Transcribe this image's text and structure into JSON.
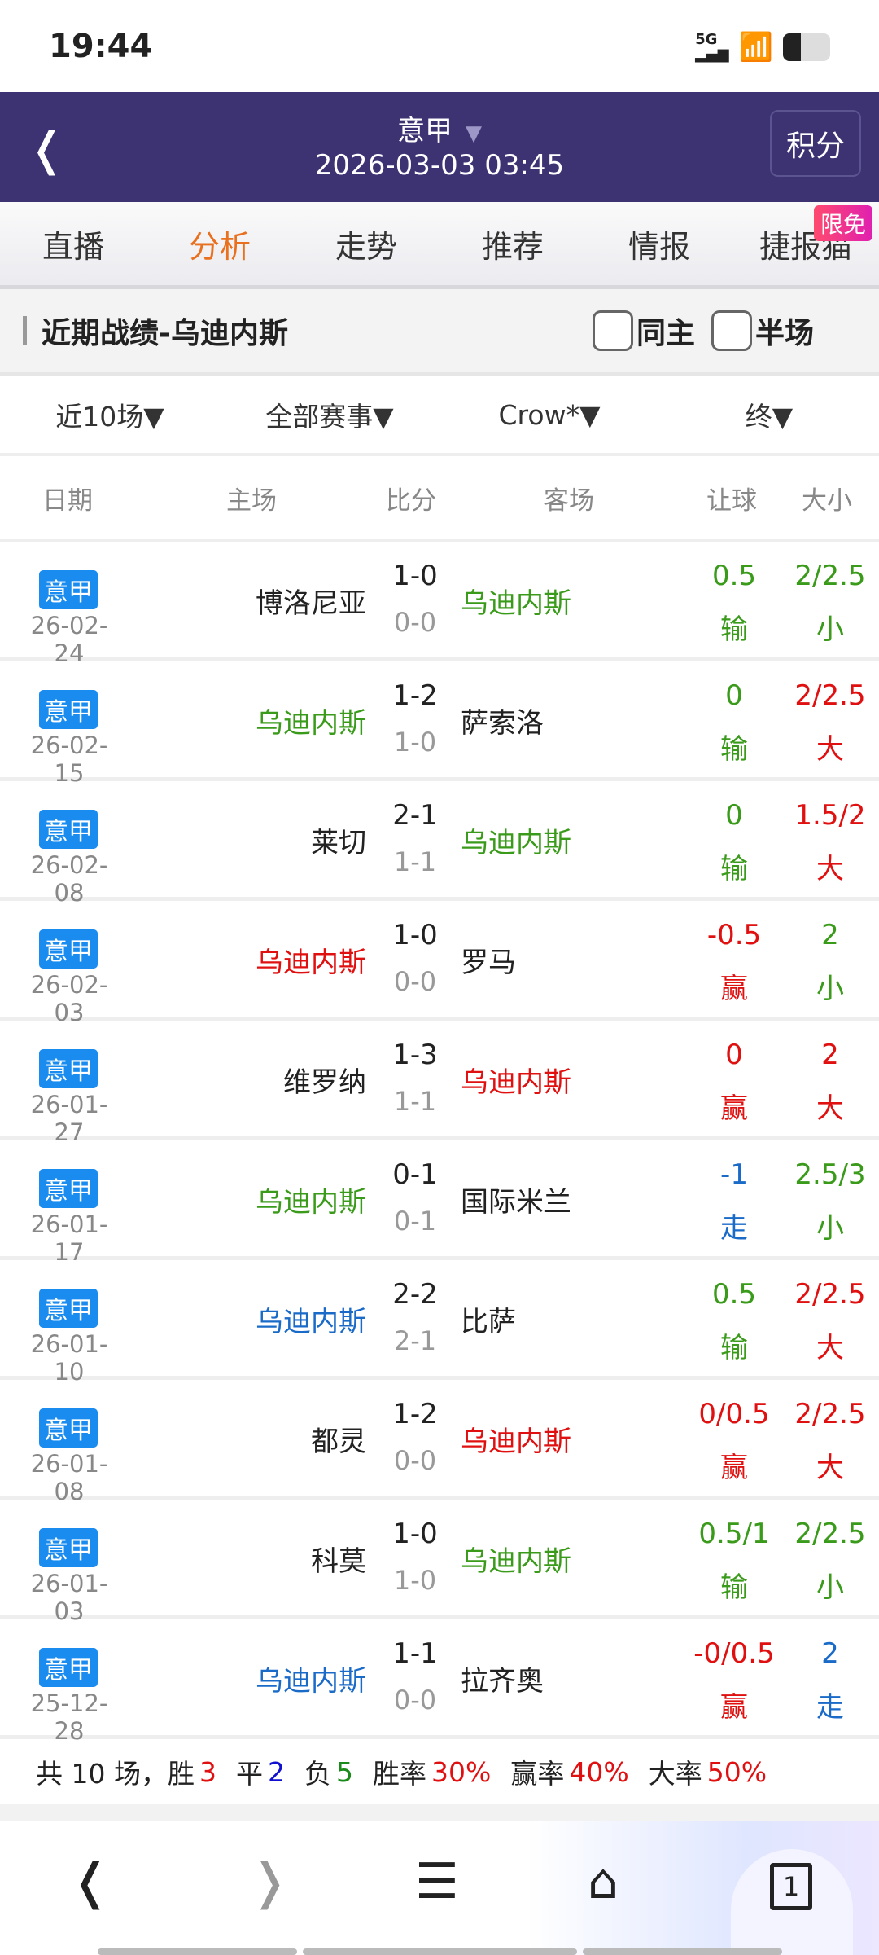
{
  "status": {
    "time": "19:44",
    "network": "5G"
  },
  "header": {
    "league": "意甲",
    "datetime": "2026-03-03 03:45",
    "standings_button": "积分"
  },
  "tabs": [
    "直播",
    "分析",
    "走势",
    "推荐",
    "情报",
    "捷报猫"
  ],
  "active_tab": "分析",
  "tab_badge": "限免",
  "section": {
    "title": "近期战绩-乌迪内斯",
    "checkbox_same_home": "同主",
    "checkbox_half": "半场"
  },
  "filters": [
    "近10场",
    "全部赛事",
    "Crow*",
    "终"
  ],
  "columns": [
    "日期",
    "主场",
    "比分",
    "客场",
    "让球",
    "大小"
  ],
  "colors": {
    "green": "#3a9a1a",
    "red": "#e01010",
    "blue": "#1a6ac8",
    "dark": "#222222",
    "badge": "#1a8cf0",
    "header": "#3d3373",
    "accent": "#e8701e"
  },
  "rows": [
    {
      "league": "意甲",
      "date": "26-02-24",
      "home": "博洛尼亚",
      "home_color": "dark",
      "away": "乌迪内斯",
      "away_color": "green",
      "ft": "1-0",
      "ht": "0-0",
      "hcp": "0.5",
      "hcp_result": "输",
      "hcp_color": "green",
      "ou": "2/2.5",
      "ou_result": "小",
      "ou_color": "green"
    },
    {
      "league": "意甲",
      "date": "26-02-15",
      "home": "乌迪内斯",
      "home_color": "green",
      "away": "萨索洛",
      "away_color": "dark",
      "ft": "1-2",
      "ht": "1-0",
      "hcp": "0",
      "hcp_result": "输",
      "hcp_color": "green",
      "ou": "2/2.5",
      "ou_result": "大",
      "ou_color": "red"
    },
    {
      "league": "意甲",
      "date": "26-02-08",
      "home": "莱切",
      "home_color": "dark",
      "away": "乌迪内斯",
      "away_color": "green",
      "ft": "2-1",
      "ht": "1-1",
      "hcp": "0",
      "hcp_result": "输",
      "hcp_color": "green",
      "ou": "1.5/2",
      "ou_result": "大",
      "ou_color": "red"
    },
    {
      "league": "意甲",
      "date": "26-02-03",
      "home": "乌迪内斯",
      "home_color": "red",
      "away": "罗马",
      "away_color": "dark",
      "ft": "1-0",
      "ht": "0-0",
      "hcp": "-0.5",
      "hcp_result": "赢",
      "hcp_color": "red",
      "ou": "2",
      "ou_result": "小",
      "ou_color": "green"
    },
    {
      "league": "意甲",
      "date": "26-01-27",
      "home": "维罗纳",
      "home_color": "dark",
      "away": "乌迪内斯",
      "away_color": "red",
      "ft": "1-3",
      "ht": "1-1",
      "hcp": "0",
      "hcp_result": "赢",
      "hcp_color": "red",
      "ou": "2",
      "ou_result": "大",
      "ou_color": "red"
    },
    {
      "league": "意甲",
      "date": "26-01-17",
      "home": "乌迪内斯",
      "home_color": "green",
      "away": "国际米兰",
      "away_color": "dark",
      "ft": "0-1",
      "ht": "0-1",
      "hcp": "-1",
      "hcp_result": "走",
      "hcp_color": "blue",
      "ou": "2.5/3",
      "ou_result": "小",
      "ou_color": "green"
    },
    {
      "league": "意甲",
      "date": "26-01-10",
      "home": "乌迪内斯",
      "home_color": "blue",
      "away": "比萨",
      "away_color": "dark",
      "ft": "2-2",
      "ht": "2-1",
      "hcp": "0.5",
      "hcp_result": "输",
      "hcp_color": "green",
      "ou": "2/2.5",
      "ou_result": "大",
      "ou_color": "red"
    },
    {
      "league": "意甲",
      "date": "26-01-08",
      "home": "都灵",
      "home_color": "dark",
      "away": "乌迪内斯",
      "away_color": "red",
      "ft": "1-2",
      "ht": "0-0",
      "hcp": "0/0.5",
      "hcp_result": "赢",
      "hcp_color": "red",
      "ou": "2/2.5",
      "ou_result": "大",
      "ou_color": "red"
    },
    {
      "league": "意甲",
      "date": "26-01-03",
      "home": "科莫",
      "home_color": "dark",
      "away": "乌迪内斯",
      "away_color": "green",
      "ft": "1-0",
      "ht": "1-0",
      "hcp": "0.5/1",
      "hcp_result": "输",
      "hcp_color": "green",
      "ou": "2/2.5",
      "ou_result": "小",
      "ou_color": "green"
    },
    {
      "league": "意甲",
      "date": "25-12-28",
      "home": "乌迪内斯",
      "home_color": "blue",
      "away": "拉齐奥",
      "away_color": "dark",
      "ft": "1-1",
      "ht": "0-0",
      "hcp": "-0/0.5",
      "hcp_result": "赢",
      "hcp_color": "red",
      "ou": "2",
      "ou_result": "走",
      "ou_color": "blue"
    }
  ],
  "summary": {
    "total_label": "共 10 场，",
    "win_label": "胜",
    "win": "3",
    "draw_label": "平",
    "draw": "2",
    "loss_label": "负",
    "loss": "5",
    "win_rate_label": "胜率",
    "win_rate": "30%",
    "cover_rate_label": "赢率",
    "cover_rate": "40%",
    "over_rate_label": "大率",
    "over_rate": "50%"
  },
  "bottom_nav": {
    "tab_count": "1"
  }
}
